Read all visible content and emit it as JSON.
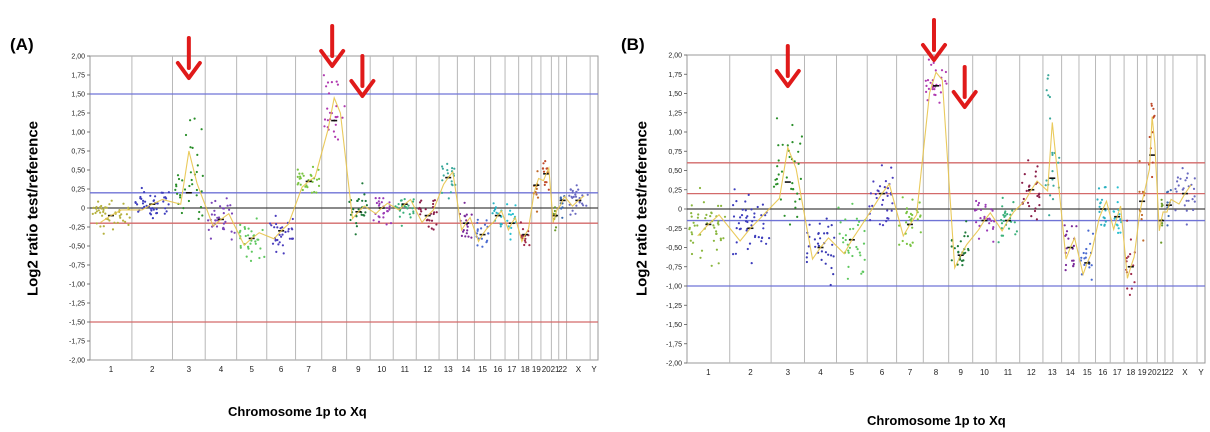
{
  "chart_data": [
    {
      "type": "scatter",
      "panel_label": "(A)",
      "xlabel": "Chromosome 1p to Xq",
      "ylabel": "Log2 ratio test/reference",
      "ylim": [
        -2.0,
        2.0
      ],
      "yticks": [
        "2,00",
        "1,75",
        "1,50",
        "1,25",
        "1,00",
        "0,75",
        "0,50",
        "0,25",
        "0",
        "-0,25",
        "-0,50",
        "-0,75",
        "-1,00",
        "-1,25",
        "-1,50",
        "-1,75",
        "-2,00"
      ],
      "chromosomes": [
        "1",
        "2",
        "3",
        "4",
        "5",
        "6",
        "7",
        "8",
        "9",
        "10",
        "11",
        "12",
        "13",
        "14",
        "15",
        "16",
        "17",
        "18",
        "19",
        "20",
        "21",
        "22",
        "X",
        "Y"
      ],
      "chromosome_tick_labels": [
        "1",
        "2",
        "3",
        "4",
        "5",
        "6",
        "7",
        "8",
        "9",
        "10",
        "11",
        "12",
        "13",
        "14",
        "15",
        "16",
        "17",
        "18",
        "19",
        "20",
        "21",
        "22",
        "X",
        "Y"
      ],
      "threshold_lines": [
        {
          "y": 1.5,
          "color": "#6f73d6"
        },
        {
          "y": 0.2,
          "color": "#6f73d6"
        },
        {
          "y": -0.2,
          "color": "#d36a6a"
        },
        {
          "y": -1.5,
          "color": "#d36a6a"
        }
      ],
      "arrows_at_chromosomes": [
        "3",
        "8",
        "9"
      ],
      "series": [
        {
          "chromosome": "1",
          "mean": -0.1,
          "spread": 0.3,
          "color": "#b5b13e"
        },
        {
          "chromosome": "2",
          "mean": 0.05,
          "spread": 0.25,
          "color": "#3d3dbd"
        },
        {
          "chromosome": "3",
          "mean": 0.2,
          "spread": 0.5,
          "color": "#2a8f2a",
          "peak": 1.3
        },
        {
          "chromosome": "4",
          "mean": -0.15,
          "spread": 0.3,
          "color": "#7a45b8"
        },
        {
          "chromosome": "5",
          "mean": -0.4,
          "spread": 0.3,
          "color": "#5fc85f"
        },
        {
          "chromosome": "6",
          "mean": -0.3,
          "spread": 0.35,
          "color": "#4a3dbd"
        },
        {
          "chromosome": "7",
          "mean": 0.35,
          "spread": 0.25,
          "color": "#79c442"
        },
        {
          "chromosome": "8",
          "mean": 1.15,
          "spread": 0.4,
          "color": "#b03ab0",
          "peak": 1.75
        },
        {
          "chromosome": "9",
          "mean": -0.05,
          "spread": 0.3,
          "color": "#1f7a3a"
        },
        {
          "chromosome": "10",
          "mean": 0.0,
          "spread": 0.25,
          "color": "#9a3ab5"
        },
        {
          "chromosome": "11",
          "mean": 0.05,
          "spread": 0.25,
          "color": "#3ab07a"
        },
        {
          "chromosome": "12",
          "mean": -0.1,
          "spread": 0.3,
          "color": "#8a1f4a"
        },
        {
          "chromosome": "13",
          "mean": 0.4,
          "spread": 0.3,
          "color": "#3aa89a"
        },
        {
          "chromosome": "14",
          "mean": -0.2,
          "spread": 0.3,
          "color": "#7a2a9a"
        },
        {
          "chromosome": "15",
          "mean": -0.35,
          "spread": 0.3,
          "color": "#4a6ad0"
        },
        {
          "chromosome": "16",
          "mean": -0.1,
          "spread": 0.25,
          "color": "#2ab0c0"
        },
        {
          "chromosome": "17",
          "mean": -0.2,
          "spread": 0.3,
          "color": "#2ac0d0"
        },
        {
          "chromosome": "18",
          "mean": -0.35,
          "spread": 0.3,
          "color": "#a02a4a"
        },
        {
          "chromosome": "19",
          "mean": 0.3,
          "spread": 0.35,
          "color": "#c06a2a"
        },
        {
          "chromosome": "20",
          "mean": 0.45,
          "spread": 0.3,
          "color": "#c04a2a"
        },
        {
          "chromosome": "21",
          "mean": -0.1,
          "spread": 0.3,
          "color": "#6a9a2a"
        },
        {
          "chromosome": "22",
          "mean": 0.1,
          "spread": 0.2,
          "color": "#3a6ab0"
        },
        {
          "chromosome": "X",
          "mean": 0.1,
          "spread": 0.25,
          "color": "#6a6ac0"
        }
      ]
    },
    {
      "type": "scatter",
      "panel_label": "(B)",
      "xlabel": "Chromosome 1p to Xq",
      "ylabel": "Log2 ratio test/reference",
      "ylim": [
        -2.0,
        2.0
      ],
      "yticks": [
        "2,00",
        "1,75",
        "1,50",
        "1,25",
        "1,00",
        "0,75",
        "0,50",
        "0,25",
        "0",
        "-0,25",
        "-0,50",
        "-0,75",
        "-1,00",
        "-1,25",
        "-1,50",
        "-1,75",
        "-2,00"
      ],
      "chromosomes": [
        "1",
        "2",
        "3",
        "4",
        "5",
        "6",
        "7",
        "8",
        "9",
        "10",
        "11",
        "12",
        "13",
        "14",
        "15",
        "16",
        "17",
        "18",
        "19",
        "20",
        "21",
        "22",
        "X",
        "Y"
      ],
      "chromosome_tick_labels": [
        "1",
        "2",
        "3",
        "4",
        "5",
        "6",
        "7",
        "8",
        "9",
        "10",
        "11",
        "12",
        "13",
        "14",
        "15",
        "16",
        "17",
        "18",
        "19",
        "20",
        "21",
        "22",
        "X",
        "Y"
      ],
      "threshold_lines": [
        {
          "y": 0.6,
          "color": "#d36a6a"
        },
        {
          "y": 0.2,
          "color": "#d36a6a"
        },
        {
          "y": -0.15,
          "color": "#6f73d6"
        },
        {
          "y": -1.0,
          "color": "#6f73d6"
        }
      ],
      "arrows_at_chromosomes": [
        "3",
        "8",
        "9"
      ],
      "series": [
        {
          "chromosome": "1",
          "mean": -0.2,
          "spread": 0.5,
          "color": "#8ab63e"
        },
        {
          "chromosome": "2",
          "mean": -0.25,
          "spread": 0.55,
          "color": "#3d3dbd"
        },
        {
          "chromosome": "3",
          "mean": 0.35,
          "spread": 0.7,
          "color": "#2a8f2a",
          "peak": 1.25
        },
        {
          "chromosome": "4",
          "mean": -0.5,
          "spread": 0.5,
          "color": "#3a3ab5"
        },
        {
          "chromosome": "5",
          "mean": -0.4,
          "spread": 0.6,
          "color": "#5fc85f"
        },
        {
          "chromosome": "6",
          "mean": 0.2,
          "spread": 0.5,
          "color": "#4a3dbd"
        },
        {
          "chromosome": "7",
          "mean": -0.2,
          "spread": 0.5,
          "color": "#79c442"
        },
        {
          "chromosome": "8",
          "mean": 1.6,
          "spread": 0.3,
          "color": "#b03ab0",
          "peak": 1.95
        },
        {
          "chromosome": "9",
          "mean": -0.6,
          "spread": 0.55,
          "color": "#1f7a3a"
        },
        {
          "chromosome": "10",
          "mean": -0.15,
          "spread": 0.4,
          "color": "#9a3ab5"
        },
        {
          "chromosome": "11",
          "mean": -0.15,
          "spread": 0.45,
          "color": "#3ab07a"
        },
        {
          "chromosome": "12",
          "mean": 0.25,
          "spread": 0.45,
          "color": "#8a1f4a"
        },
        {
          "chromosome": "13",
          "mean": 0.4,
          "spread": 0.55,
          "color": "#3aa89a",
          "peak": 1.85
        },
        {
          "chromosome": "14",
          "mean": -0.5,
          "spread": 0.5,
          "color": "#7a2a9a"
        },
        {
          "chromosome": "15",
          "mean": -0.7,
          "spread": 0.5,
          "color": "#4a6ad0"
        },
        {
          "chromosome": "16",
          "mean": 0.0,
          "spread": 0.4,
          "color": "#2ab0c0"
        },
        {
          "chromosome": "17",
          "mean": -0.1,
          "spread": 0.55,
          "color": "#2ac0d0"
        },
        {
          "chromosome": "18",
          "mean": -0.75,
          "spread": 0.5,
          "color": "#a02a4a"
        },
        {
          "chromosome": "19",
          "mean": 0.1,
          "spread": 0.5,
          "color": "#c06a2a"
        },
        {
          "chromosome": "20",
          "mean": 0.7,
          "spread": 0.6,
          "color": "#c04a2a",
          "peak": 1.7
        },
        {
          "chromosome": "21",
          "mean": -0.15,
          "spread": 0.45,
          "color": "#6a9a2a"
        },
        {
          "chromosome": "22",
          "mean": 0.05,
          "spread": 0.3,
          "color": "#3a6ab0"
        },
        {
          "chromosome": "X",
          "mean": 0.2,
          "spread": 0.45,
          "color": "#6a6ac0"
        }
      ]
    }
  ]
}
